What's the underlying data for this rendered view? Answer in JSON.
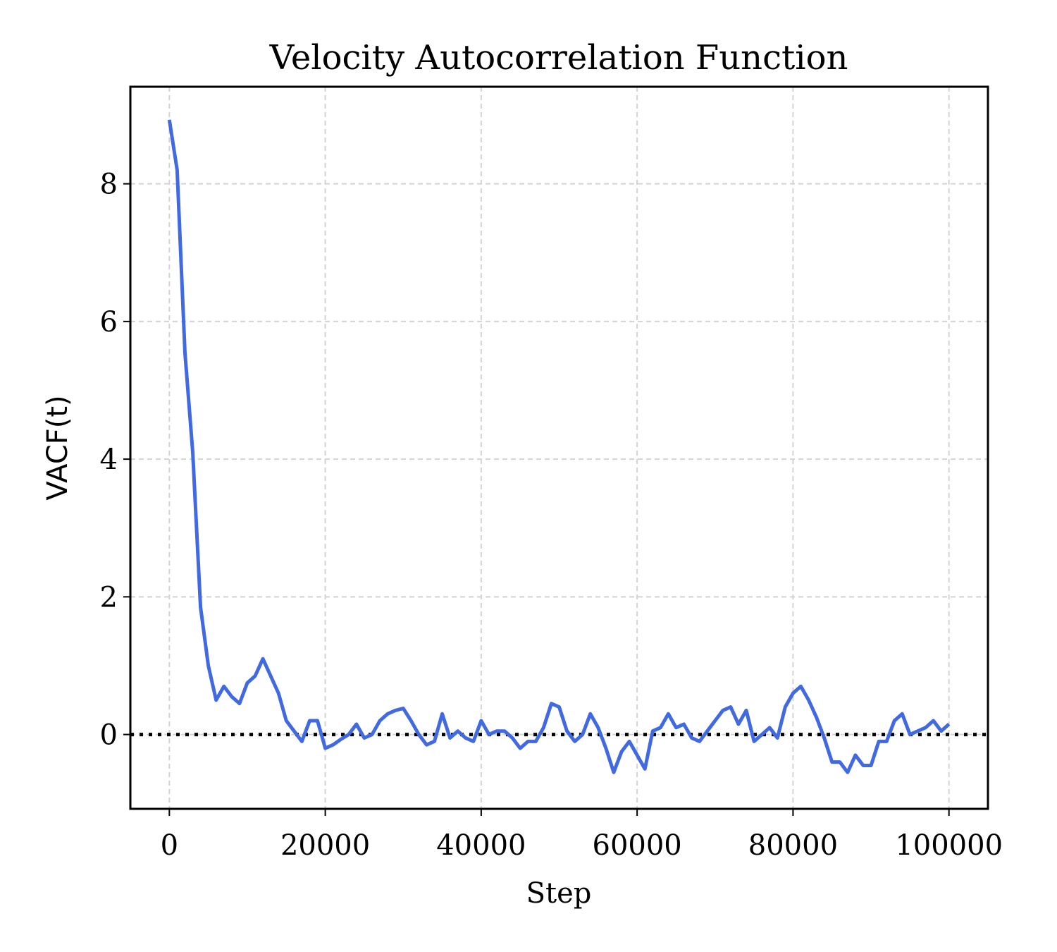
{
  "chart_data": {
    "type": "line",
    "title": "Velocity Autocorrelation Function",
    "xlabel": "Step",
    "ylabel": "VACF(t)",
    "x": [
      0,
      1000,
      2000,
      3000,
      4000,
      5000,
      6000,
      7000,
      8000,
      9000,
      10000,
      11000,
      12000,
      13000,
      14000,
      15000,
      16000,
      17000,
      18000,
      19000,
      20000,
      21000,
      22000,
      23000,
      24000,
      25000,
      26000,
      27000,
      28000,
      29000,
      30000,
      31000,
      32000,
      33000,
      34000,
      35000,
      36000,
      37000,
      38000,
      39000,
      40000,
      41000,
      42000,
      43000,
      44000,
      45000,
      46000,
      47000,
      48000,
      49000,
      50000,
      51000,
      52000,
      53000,
      54000,
      55000,
      56000,
      57000,
      58000,
      59000,
      60000,
      61000,
      62000,
      63000,
      64000,
      65000,
      66000,
      67000,
      68000,
      69000,
      70000,
      71000,
      72000,
      73000,
      74000,
      75000,
      76000,
      77000,
      78000,
      79000,
      80000,
      81000,
      82000,
      83000,
      84000,
      85000,
      86000,
      87000,
      88000,
      89000,
      90000,
      91000,
      92000,
      93000,
      94000,
      95000,
      96000,
      97000,
      98000,
      99000,
      100000
    ],
    "values": [
      8.93,
      8.2,
      5.55,
      4.1,
      1.85,
      1.0,
      0.5,
      0.7,
      0.55,
      0.45,
      0.75,
      0.85,
      1.1,
      0.85,
      0.6,
      0.2,
      0.05,
      -0.1,
      0.2,
      0.2,
      -0.2,
      -0.15,
      -0.07,
      0.0,
      0.15,
      -0.05,
      0.0,
      0.2,
      0.3,
      0.35,
      0.38,
      0.2,
      0.0,
      -0.15,
      -0.1,
      0.3,
      -0.05,
      0.05,
      -0.05,
      -0.1,
      0.2,
      0.0,
      0.05,
      0.05,
      -0.05,
      -0.2,
      -0.1,
      -0.1,
      0.1,
      0.45,
      0.4,
      0.05,
      -0.1,
      0.0,
      0.3,
      0.1,
      -0.2,
      -0.55,
      -0.25,
      -0.1,
      -0.3,
      -0.5,
      0.05,
      0.1,
      0.3,
      0.1,
      0.15,
      -0.05,
      -0.1,
      0.05,
      0.2,
      0.35,
      0.4,
      0.15,
      0.35,
      -0.1,
      0.0,
      0.1,
      -0.05,
      0.4,
      0.6,
      0.7,
      0.5,
      0.25,
      -0.05,
      -0.4,
      -0.4,
      -0.55,
      -0.3,
      -0.45,
      -0.45,
      -0.1,
      -0.1,
      0.2,
      0.3,
      0.0,
      0.05,
      0.1,
      0.2,
      0.05,
      0.15
    ],
    "color": "#4169e1",
    "hline": 0,
    "xlim": [
      -5000,
      105000
    ],
    "ylim": [
      -1.08,
      9.41
    ],
    "xticks": [
      0,
      20000,
      40000,
      60000,
      80000,
      100000
    ],
    "yticks": [
      0,
      2,
      4,
      6,
      8
    ],
    "grid": true
  }
}
